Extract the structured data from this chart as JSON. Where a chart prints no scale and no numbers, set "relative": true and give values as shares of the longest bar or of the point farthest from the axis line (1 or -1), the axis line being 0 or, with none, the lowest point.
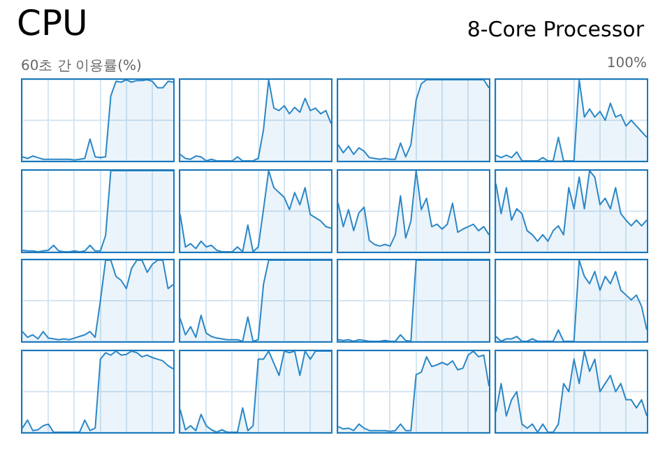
{
  "chart_data": [
    {
      "type": "area",
      "title": "CPU",
      "annotations": [
        "60초 간 이용률(%)"
      ],
      "relative": true,
      "grid": true,
      "marker": "none",
      "categories": [
        null,
        null,
        null,
        null,
        null,
        null,
        null,
        null,
        null,
        null,
        null,
        null,
        null,
        null,
        null,
        null,
        null,
        null,
        null,
        null,
        null,
        null,
        null,
        null,
        null,
        null,
        null,
        null,
        null,
        null
      ],
      "series": [
        {
          "color": "#2b87c6",
          "values": [
            0.05,
            0.03,
            0.06,
            0.04,
            0.02,
            0.02,
            0.02,
            0.02,
            0.02,
            0.02,
            0.01,
            0.02,
            0.03,
            0.27,
            0.05,
            0.04,
            0.05,
            0.8,
            0.98,
            0.97,
            1,
            0.97,
            0.99,
            0.99,
            1,
            0.98,
            0.9,
            0.9,
            0.98,
            0.97
          ]
        }
      ]
    },
    {
      "type": "area",
      "relative": true,
      "grid": true,
      "marker": "none",
      "categories": [
        null,
        null,
        null,
        null,
        null,
        null,
        null,
        null,
        null,
        null,
        null,
        null,
        null,
        null,
        null,
        null,
        null,
        null,
        null,
        null,
        null,
        null,
        null,
        null,
        null,
        null,
        null,
        null,
        null,
        null
      ],
      "series": [
        {
          "color": "#2b87c6",
          "values": [
            0.08,
            0.03,
            0.02,
            0.06,
            0.05,
            0,
            0.02,
            0,
            0,
            0,
            0,
            0.05,
            0,
            0,
            0,
            0.03,
            0.38,
            1,
            0.65,
            0.62,
            0.68,
            0.58,
            0.66,
            0.6,
            0.77,
            0.62,
            0.65,
            0.58,
            0.62,
            0.46
          ]
        }
      ]
    },
    {
      "type": "area",
      "relative": true,
      "grid": true,
      "marker": "none",
      "categories": [
        null,
        null,
        null,
        null,
        null,
        null,
        null,
        null,
        null,
        null,
        null,
        null,
        null,
        null,
        null,
        null,
        null,
        null,
        null,
        null,
        null,
        null,
        null,
        null,
        null,
        null,
        null,
        null,
        null,
        null
      ],
      "series": [
        {
          "color": "#2b87c6",
          "values": [
            0.2,
            0.1,
            0.18,
            0.08,
            0.16,
            0.12,
            0.04,
            0.03,
            0.02,
            0.03,
            0.02,
            0.02,
            0.22,
            0.05,
            0.2,
            0.75,
            0.95,
            1,
            1,
            1,
            1,
            1,
            1,
            1,
            1,
            1,
            1,
            1,
            1,
            0.9
          ]
        }
      ]
    },
    {
      "type": "area",
      "subtitle": "8-Core Processor",
      "annotations": [
        "100%"
      ],
      "relative": true,
      "grid": true,
      "marker": "none",
      "categories": [
        null,
        null,
        null,
        null,
        null,
        null,
        null,
        null,
        null,
        null,
        null,
        null,
        null,
        null,
        null,
        null,
        null,
        null,
        null,
        null,
        null,
        null,
        null,
        null,
        null,
        null,
        null,
        null,
        null,
        null
      ],
      "series": [
        {
          "color": "#2b87c6",
          "values": [
            0.07,
            0.04,
            0.07,
            0.04,
            0.11,
            0,
            0,
            0,
            0,
            0.04,
            0,
            0,
            0.29,
            0,
            0,
            0,
            1,
            0.54,
            0.64,
            0.54,
            0.61,
            0.5,
            0.71,
            0.54,
            0.57,
            0.43,
            0.5,
            0.43,
            0.36,
            0.29
          ]
        }
      ]
    },
    {
      "type": "area",
      "relative": true,
      "grid": true,
      "marker": "none",
      "categories": [
        null,
        null,
        null,
        null,
        null,
        null,
        null,
        null,
        null,
        null,
        null,
        null,
        null,
        null,
        null,
        null,
        null,
        null,
        null,
        null,
        null,
        null,
        null,
        null,
        null,
        null,
        null,
        null,
        null,
        null
      ],
      "series": [
        {
          "color": "#2b87c6",
          "values": [
            0.02,
            0.01,
            0.01,
            0,
            0.01,
            0.02,
            0.08,
            0.01,
            0,
            0,
            0.01,
            0,
            0.01,
            0.08,
            0.01,
            0.01,
            0.2,
            1,
            1,
            1,
            1,
            1,
            1,
            1,
            1,
            1,
            1,
            1,
            1,
            1
          ]
        }
      ]
    },
    {
      "type": "area",
      "relative": true,
      "grid": true,
      "marker": "none",
      "categories": [
        null,
        null,
        null,
        null,
        null,
        null,
        null,
        null,
        null,
        null,
        null,
        null,
        null,
        null,
        null,
        null,
        null,
        null,
        null,
        null,
        null,
        null,
        null,
        null,
        null,
        null,
        null,
        null,
        null,
        null
      ],
      "series": [
        {
          "color": "#2b87c6",
          "values": [
            0.46,
            0.06,
            0.1,
            0.04,
            0.13,
            0.06,
            0.08,
            0.02,
            0,
            0,
            0,
            0.06,
            0,
            0.33,
            0,
            0.06,
            0.52,
            1,
            0.79,
            0.73,
            0.67,
            0.52,
            0.73,
            0.58,
            0.79,
            0.46,
            0.42,
            0.38,
            0.31,
            0.29
          ]
        }
      ]
    },
    {
      "type": "area",
      "relative": true,
      "grid": true,
      "marker": "none",
      "categories": [
        null,
        null,
        null,
        null,
        null,
        null,
        null,
        null,
        null,
        null,
        null,
        null,
        null,
        null,
        null,
        null,
        null,
        null,
        null,
        null,
        null,
        null,
        null,
        null,
        null,
        null,
        null,
        null,
        null,
        null
      ],
      "series": [
        {
          "color": "#2b87c6",
          "values": [
            0.6,
            0.31,
            0.52,
            0.26,
            0.48,
            0.55,
            0.14,
            0.09,
            0.07,
            0.09,
            0.07,
            0.21,
            0.69,
            0.17,
            0.38,
            1,
            0.52,
            0.66,
            0.31,
            0.34,
            0.28,
            0.34,
            0.6,
            0.24,
            0.28,
            0.31,
            0.34,
            0.26,
            0.31,
            0.21
          ]
        }
      ]
    },
    {
      "type": "area",
      "relative": true,
      "grid": true,
      "marker": "none",
      "categories": [
        null,
        null,
        null,
        null,
        null,
        null,
        null,
        null,
        null,
        null,
        null,
        null,
        null,
        null,
        null,
        null,
        null,
        null,
        null,
        null,
        null,
        null,
        null,
        null,
        null,
        null,
        null,
        null,
        null,
        null
      ],
      "series": [
        {
          "color": "#2b87c6",
          "values": [
            0.84,
            0.47,
            0.79,
            0.39,
            0.53,
            0.47,
            0.26,
            0.21,
            0.13,
            0.21,
            0.13,
            0.26,
            0.32,
            0.21,
            0.79,
            0.53,
            0.92,
            0.53,
            1,
            0.92,
            0.58,
            0.66,
            0.53,
            0.79,
            0.47,
            0.39,
            0.32,
            0.39,
            0.32,
            0.39
          ]
        }
      ]
    },
    {
      "type": "area",
      "relative": true,
      "grid": true,
      "marker": "none",
      "categories": [
        null,
        null,
        null,
        null,
        null,
        null,
        null,
        null,
        null,
        null,
        null,
        null,
        null,
        null,
        null,
        null,
        null,
        null,
        null,
        null,
        null,
        null,
        null,
        null,
        null,
        null,
        null,
        null,
        null,
        null
      ],
      "series": [
        {
          "color": "#2b87c6",
          "values": [
            0.12,
            0.05,
            0.08,
            0.03,
            0.12,
            0.04,
            0.03,
            0.02,
            0.03,
            0.02,
            0.04,
            0.06,
            0.08,
            0.12,
            0.05,
            0.5,
            1,
            1,
            0.8,
            0.75,
            0.65,
            0.9,
            1,
            1,
            0.85,
            0.95,
            1,
            1,
            0.65,
            0.7
          ]
        }
      ]
    },
    {
      "type": "area",
      "relative": true,
      "grid": true,
      "marker": "none",
      "categories": [
        null,
        null,
        null,
        null,
        null,
        null,
        null,
        null,
        null,
        null,
        null,
        null,
        null,
        null,
        null,
        null,
        null,
        null,
        null,
        null,
        null,
        null,
        null,
        null,
        null,
        null,
        null,
        null,
        null,
        null
      ],
      "series": [
        {
          "color": "#2b87c6",
          "values": [
            0.28,
            0.08,
            0.18,
            0.05,
            0.32,
            0.1,
            0.06,
            0.04,
            0.03,
            0.02,
            0.02,
            0.02,
            0,
            0.3,
            0,
            0.02,
            0.7,
            1,
            1,
            1,
            1,
            1,
            1,
            1,
            1,
            1,
            1,
            1,
            1,
            1
          ]
        }
      ]
    },
    {
      "type": "area",
      "relative": true,
      "grid": true,
      "marker": "none",
      "categories": [
        null,
        null,
        null,
        null,
        null,
        null,
        null,
        null,
        null,
        null,
        null,
        null,
        null,
        null,
        null,
        null,
        null,
        null,
        null,
        null,
        null,
        null,
        null,
        null,
        null,
        null,
        null,
        null,
        null,
        null
      ],
      "series": [
        {
          "color": "#2b87c6",
          "values": [
            0.02,
            0.01,
            0.02,
            0,
            0.02,
            0.01,
            0,
            0,
            0,
            0.01,
            0,
            0,
            0.08,
            0.01,
            0,
            1,
            1,
            1,
            1,
            1,
            1,
            1,
            1,
            1,
            1,
            1,
            1,
            1,
            1,
            1
          ]
        }
      ]
    },
    {
      "type": "area",
      "relative": true,
      "grid": true,
      "marker": "none",
      "categories": [
        null,
        null,
        null,
        null,
        null,
        null,
        null,
        null,
        null,
        null,
        null,
        null,
        null,
        null,
        null,
        null,
        null,
        null,
        null,
        null,
        null,
        null,
        null,
        null,
        null,
        null,
        null,
        null,
        null,
        null
      ],
      "series": [
        {
          "color": "#2b87c6",
          "values": [
            0.06,
            0,
            0.03,
            0.03,
            0.06,
            0,
            0,
            0.03,
            0,
            0,
            0,
            0,
            0.14,
            0,
            0,
            0,
            1,
            0.8,
            0.71,
            0.86,
            0.63,
            0.8,
            0.71,
            0.86,
            0.63,
            0.57,
            0.51,
            0.57,
            0.43,
            0.14
          ]
        }
      ]
    },
    {
      "type": "area",
      "relative": true,
      "grid": true,
      "marker": "none",
      "categories": [
        null,
        null,
        null,
        null,
        null,
        null,
        null,
        null,
        null,
        null,
        null,
        null,
        null,
        null,
        null,
        null,
        null,
        null,
        null,
        null,
        null,
        null,
        null,
        null,
        null,
        null,
        null,
        null,
        null,
        null
      ],
      "series": [
        {
          "color": "#2b87c6",
          "values": [
            0.05,
            0.15,
            0.02,
            0.03,
            0.08,
            0.1,
            0,
            0,
            0,
            0,
            0,
            0,
            0.15,
            0.02,
            0.05,
            0.9,
            0.98,
            0.95,
            1,
            0.95,
            0.96,
            1,
            0.98,
            0.93,
            0.95,
            0.92,
            0.9,
            0.88,
            0.82,
            0.78
          ]
        }
      ]
    },
    {
      "type": "area",
      "relative": true,
      "grid": true,
      "marker": "none",
      "categories": [
        null,
        null,
        null,
        null,
        null,
        null,
        null,
        null,
        null,
        null,
        null,
        null,
        null,
        null,
        null,
        null,
        null,
        null,
        null,
        null,
        null,
        null,
        null,
        null,
        null,
        null,
        null,
        null,
        null,
        null
      ],
      "series": [
        {
          "color": "#2b87c6",
          "values": [
            0.28,
            0.03,
            0.08,
            0.02,
            0.22,
            0.08,
            0.03,
            0,
            0.03,
            0,
            0,
            0,
            0.3,
            0.02,
            0.08,
            0.9,
            0.9,
            1,
            0.85,
            0.7,
            1,
            0.98,
            1,
            0.7,
            1,
            0.9,
            1,
            1,
            1,
            1
          ]
        }
      ]
    },
    {
      "type": "area",
      "relative": true,
      "grid": true,
      "marker": "none",
      "categories": [
        null,
        null,
        null,
        null,
        null,
        null,
        null,
        null,
        null,
        null,
        null,
        null,
        null,
        null,
        null,
        null,
        null,
        null,
        null,
        null,
        null,
        null,
        null,
        null,
        null,
        null,
        null,
        null,
        null,
        null
      ],
      "series": [
        {
          "color": "#2b87c6",
          "values": [
            0.07,
            0.04,
            0.05,
            0.02,
            0.1,
            0.05,
            0.02,
            0.02,
            0.02,
            0.02,
            0.01,
            0.02,
            0.1,
            0.02,
            0.02,
            0.71,
            0.74,
            0.93,
            0.81,
            0.83,
            0.86,
            0.83,
            0.88,
            0.77,
            0.79,
            0.95,
            1,
            0.93,
            0.95,
            0.57
          ]
        }
      ]
    },
    {
      "type": "area",
      "relative": true,
      "grid": true,
      "marker": "none",
      "categories": [
        null,
        null,
        null,
        null,
        null,
        null,
        null,
        null,
        null,
        null,
        null,
        null,
        null,
        null,
        null,
        null,
        null,
        null,
        null,
        null,
        null,
        null,
        null,
        null,
        null,
        null,
        null,
        null,
        null,
        null
      ],
      "series": [
        {
          "color": "#2b87c6",
          "values": [
            0.25,
            0.6,
            0.2,
            0.4,
            0.5,
            0.1,
            0.05,
            0.1,
            0,
            0.1,
            0,
            0,
            0.1,
            0.6,
            0.5,
            0.9,
            0.6,
            1,
            0.75,
            0.9,
            0.5,
            0.6,
            0.7,
            0.5,
            0.6,
            0.4,
            0.4,
            0.3,
            0.4,
            0.2
          ]
        }
      ]
    }
  ]
}
